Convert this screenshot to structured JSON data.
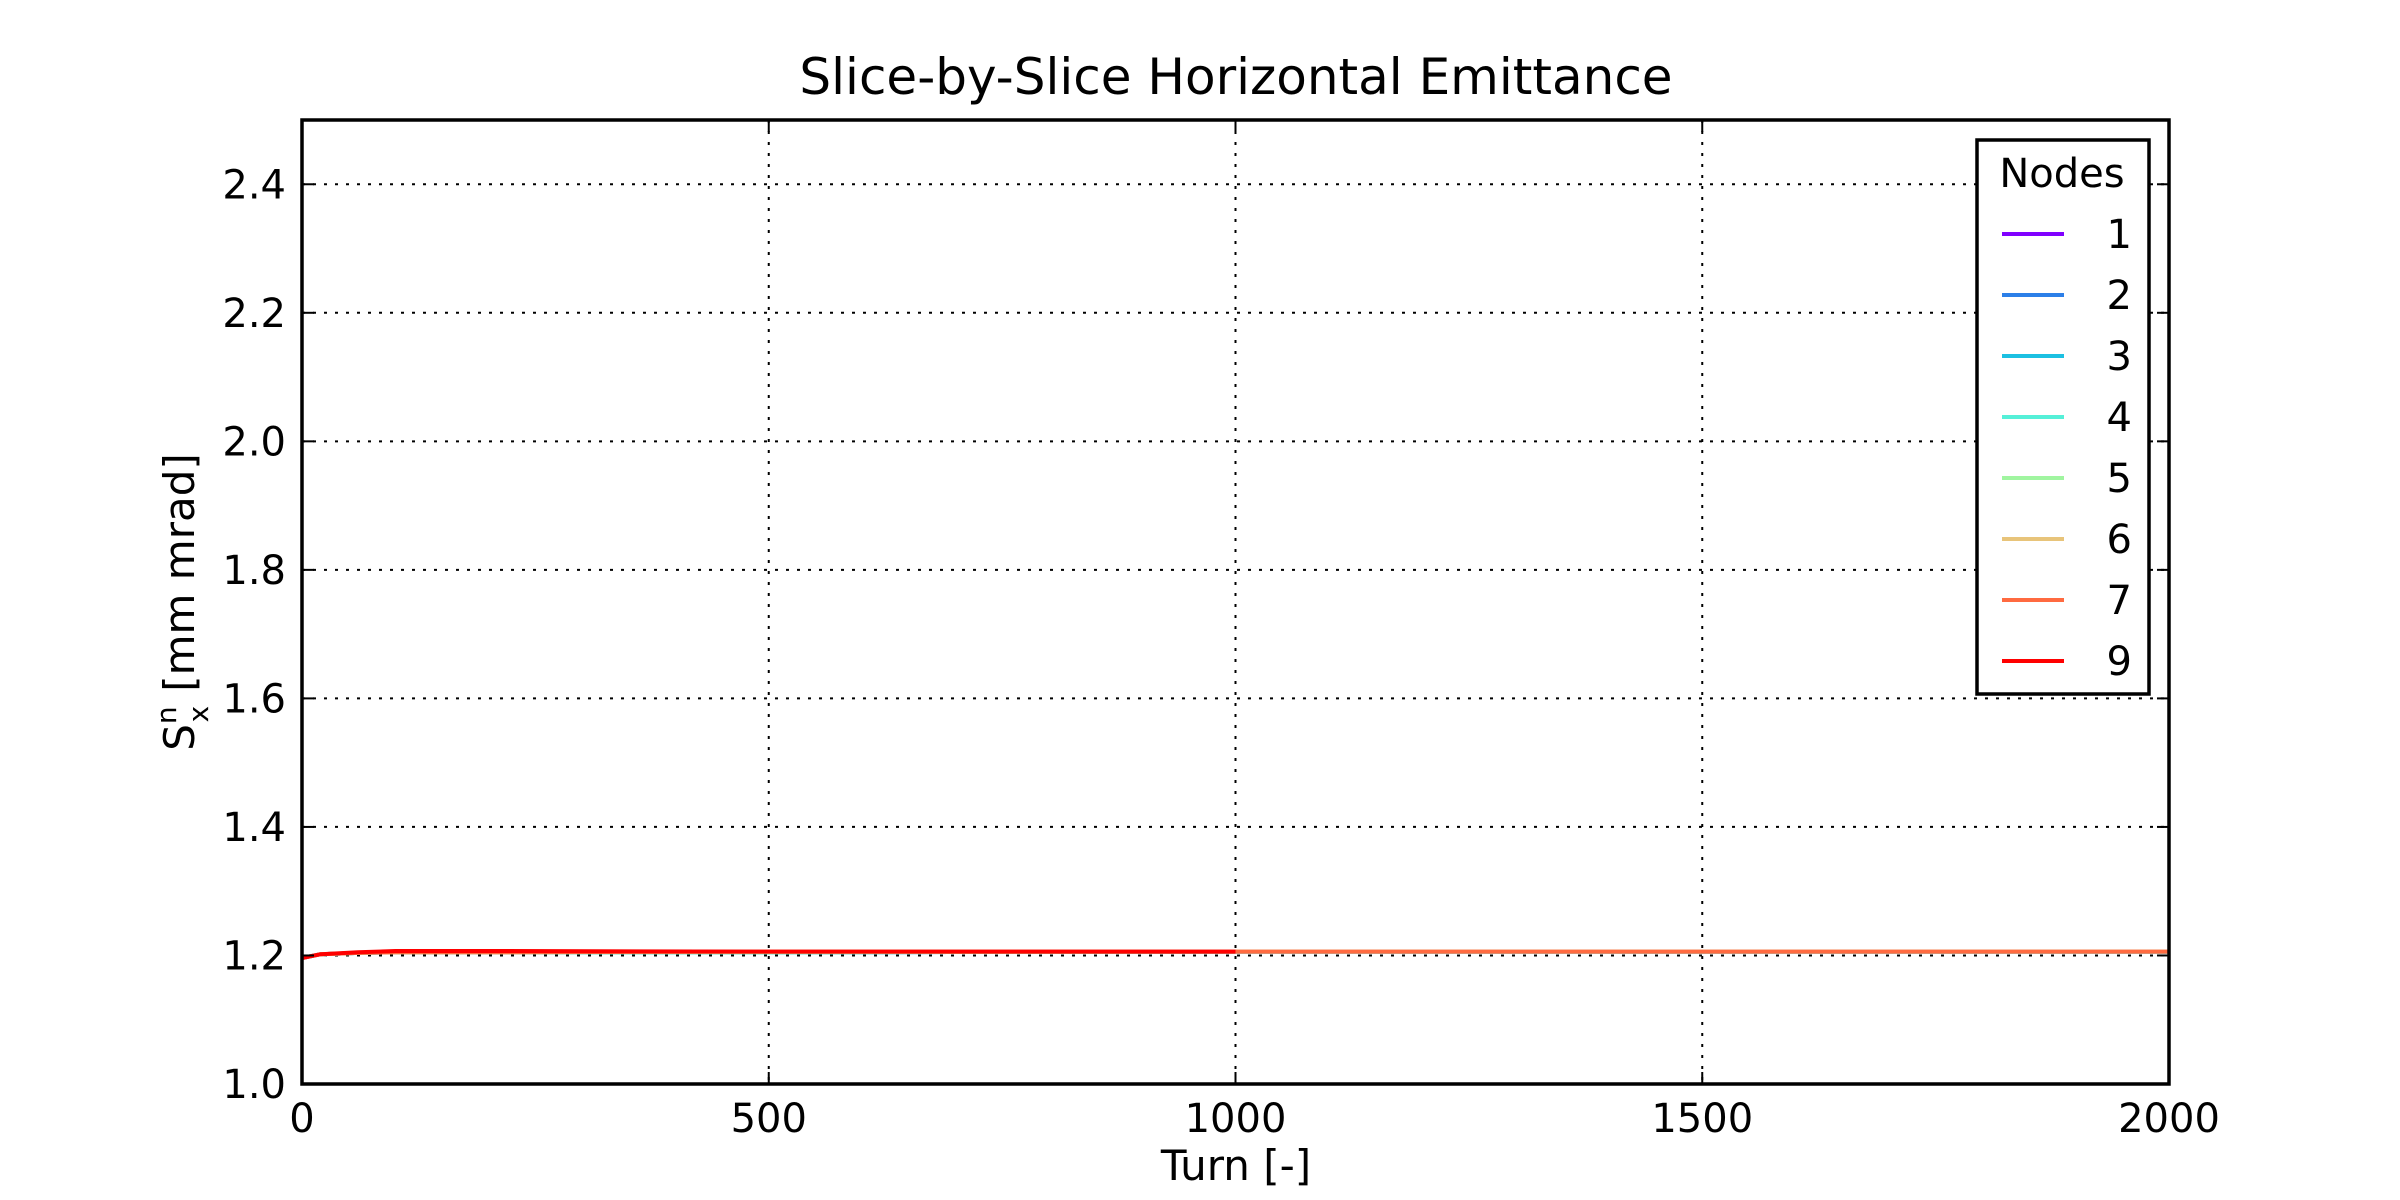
{
  "chart_data": {
    "type": "line",
    "title": "Slice-by-Slice Horizontal Emittance",
    "xlabel": "Turn [-]",
    "ylabel": {
      "main": "S",
      "sup": "n",
      "sub": "x",
      "rest": "[mm mrad]"
    },
    "xlim": [
      0,
      2000
    ],
    "ylim": [
      1.0,
      2.5
    ],
    "xticks": [
      0,
      500,
      1000,
      1500,
      2000
    ],
    "xtick_labels": [
      "0",
      "500",
      "1000",
      "1500",
      "2000"
    ],
    "yticks": [
      1.0,
      1.2,
      1.4,
      1.6,
      1.8,
      2.0,
      2.2,
      2.4
    ],
    "ytick_labels": [
      "1.0",
      "1.2",
      "1.4",
      "1.6",
      "1.8",
      "2.0",
      "2.2",
      "2.4"
    ],
    "grid": true,
    "legend_title": "Nodes",
    "legend_position": "top-right",
    "series": [
      {
        "name": "1",
        "color": "#8000ff",
        "x": [
          0,
          20,
          60,
          100,
          200,
          500,
          1000,
          1500,
          2000
        ],
        "y": [
          1.196,
          1.202,
          1.204,
          1.205,
          1.205,
          1.205,
          1.206,
          1.206,
          1.206
        ]
      },
      {
        "name": "2",
        "color": "#2c7fe8",
        "x": [
          0,
          20,
          60,
          100,
          200,
          500,
          1000,
          1500,
          2000
        ],
        "y": [
          1.196,
          1.202,
          1.204,
          1.205,
          1.205,
          1.205,
          1.206,
          1.206,
          1.206
        ]
      },
      {
        "name": "3",
        "color": "#1cc0e2",
        "x": [
          0,
          20,
          60,
          100,
          200,
          500,
          1000,
          1500,
          2000
        ],
        "y": [
          1.196,
          1.202,
          1.204,
          1.205,
          1.205,
          1.205,
          1.206,
          1.206,
          1.206
        ]
      },
      {
        "name": "4",
        "color": "#55f0d8",
        "x": [
          0,
          20,
          60,
          100,
          200,
          500,
          1000,
          1500,
          2000
        ],
        "y": [
          1.196,
          1.202,
          1.204,
          1.205,
          1.205,
          1.205,
          1.206,
          1.206,
          1.206
        ]
      },
      {
        "name": "5",
        "color": "#a0f5a0",
        "x": [
          0,
          20,
          60,
          100,
          200,
          500,
          1000,
          1500,
          2000
        ],
        "y": [
          1.196,
          1.202,
          1.204,
          1.205,
          1.205,
          1.205,
          1.206,
          1.206,
          1.206
        ]
      },
      {
        "name": "6",
        "color": "#e8c47a",
        "x": [
          0,
          20,
          60,
          100,
          200,
          500,
          1000,
          1500,
          2000
        ],
        "y": [
          1.196,
          1.202,
          1.204,
          1.205,
          1.205,
          1.206,
          1.206,
          1.206,
          1.206
        ]
      },
      {
        "name": "7",
        "color": "#ff6a40",
        "x": [
          0,
          20,
          60,
          100,
          200,
          500,
          1000,
          1500,
          2000
        ],
        "y": [
          1.196,
          1.202,
          1.204,
          1.205,
          1.205,
          1.206,
          1.206,
          1.206,
          1.206
        ]
      },
      {
        "name": "9",
        "color": "#ff0000",
        "x": [
          0,
          20,
          60,
          100,
          200,
          500,
          1000
        ],
        "y": [
          1.196,
          1.202,
          1.205,
          1.207,
          1.207,
          1.206,
          1.206
        ]
      }
    ]
  }
}
